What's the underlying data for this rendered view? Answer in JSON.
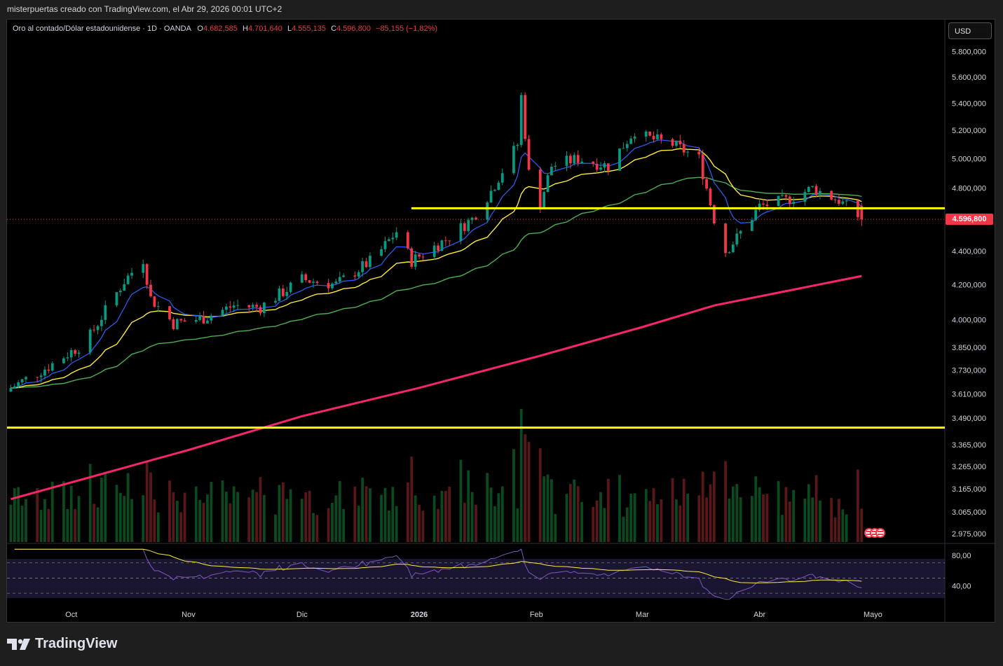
{
  "header": {
    "attribution": "misterpuertas creado con TradingView.com, el Abr 29, 2026 00:01 UTC+2"
  },
  "legend": {
    "symbol": "Oro al contado/Dólar estadounidense · 1D · OANDA",
    "o_label": "O",
    "o_value": "4.682,585",
    "h_label": "H",
    "h_value": "4.701,640",
    "l_label": "L",
    "l_value": "4.555,135",
    "c_label": "C",
    "c_value": "4.596,800",
    "change": "−85,155 (−1,82%)"
  },
  "toolbar": {
    "currency": "USD"
  },
  "brand": {
    "name": "TradingView"
  },
  "colors": {
    "up": "#089981",
    "down": "#f23645",
    "ema_fast": "#2962ff",
    "ema_mid": "#ffeb3b",
    "ma_50": "#4caf50",
    "ma_200": "#f7266a",
    "level": "#ffff00",
    "rsi": "#7e57c2"
  },
  "chart_data": {
    "type": "candlestick",
    "last_price": "4.596,800",
    "price_axis": [
      "5.800,000",
      "5.600,000",
      "5.400,000",
      "5.200,000",
      "5.000,000",
      "4.800,000",
      "4.400,000",
      "4.200,000",
      "4.000,000",
      "3.850,000",
      "3.730,000",
      "3.610,000",
      "3.490,000",
      "3.365,000",
      "3.265,000",
      "3.165,000",
      "3.065,000",
      "2.975,000"
    ],
    "price_axis_values": [
      5800,
      5600,
      5400,
      5200,
      5000,
      4800,
      4400,
      4200,
      4000,
      3850,
      3730,
      3610,
      3490,
      3365,
      3265,
      3165,
      3065,
      2975
    ],
    "ylog": true,
    "ylim": [
      2940,
      5900
    ],
    "time_axis": [
      "Oct",
      "Nov",
      "Dic",
      "2026",
      "Feb",
      "Mar",
      "Abr",
      "Mayo"
    ],
    "time_axis_dates": [
      "2025-10-01",
      "2025-11-01",
      "2025-12-01",
      "2026-01-01",
      "2026-02-01",
      "2026-03-01",
      "2026-04-01",
      "2026-05-01"
    ],
    "horizontal_levels": [
      4668,
      3445
    ],
    "anchors": {
      "dates": [
        "2025-09-15",
        "2025-09-25",
        "2025-10-05",
        "2025-10-15",
        "2025-10-20",
        "2025-10-22",
        "2025-10-28",
        "2025-11-05",
        "2025-11-13",
        "2025-11-20",
        "2025-12-01",
        "2025-12-10",
        "2025-12-20",
        "2025-12-26",
        "2025-12-30",
        "2026-01-08",
        "2026-01-15",
        "2026-01-20",
        "2026-01-27",
        "2026-01-28",
        "2026-01-30",
        "2026-02-02",
        "2026-02-05",
        "2026-02-12",
        "2026-02-20",
        "2026-02-27",
        "2026-03-02",
        "2026-03-09",
        "2026-03-16",
        "2026-03-20",
        "2026-03-23",
        "2026-03-26",
        "2026-04-01",
        "2026-04-08",
        "2026-04-15",
        "2026-04-22",
        "2026-04-28"
      ],
      "close": [
        3640,
        3750,
        3880,
        4220,
        4350,
        4120,
        3980,
        4010,
        4080,
        4070,
        4230,
        4200,
        4350,
        4520,
        4340,
        4470,
        4600,
        4780,
        5100,
        5450,
        4900,
        4700,
        4950,
        5000,
        4950,
        5200,
        5150,
        5100,
        5000,
        4600,
        4400,
        4480,
        4680,
        4720,
        4800,
        4720,
        4597
      ]
    },
    "ma_200": {
      "dates": [
        "2025-09-15",
        "2025-11-01",
        "2025-12-01",
        "2026-01-01",
        "2026-02-01",
        "2026-03-01",
        "2026-03-20",
        "2026-04-28"
      ],
      "values": [
        3120,
        3340,
        3500,
        3640,
        3800,
        3960,
        4080,
        4250
      ]
    },
    "volume_scale": "relative",
    "rsi": {
      "axis": [
        "80,00",
        "40,00"
      ],
      "axis_values": [
        80,
        40
      ],
      "upper_band": 70,
      "lower_band": 30
    }
  }
}
